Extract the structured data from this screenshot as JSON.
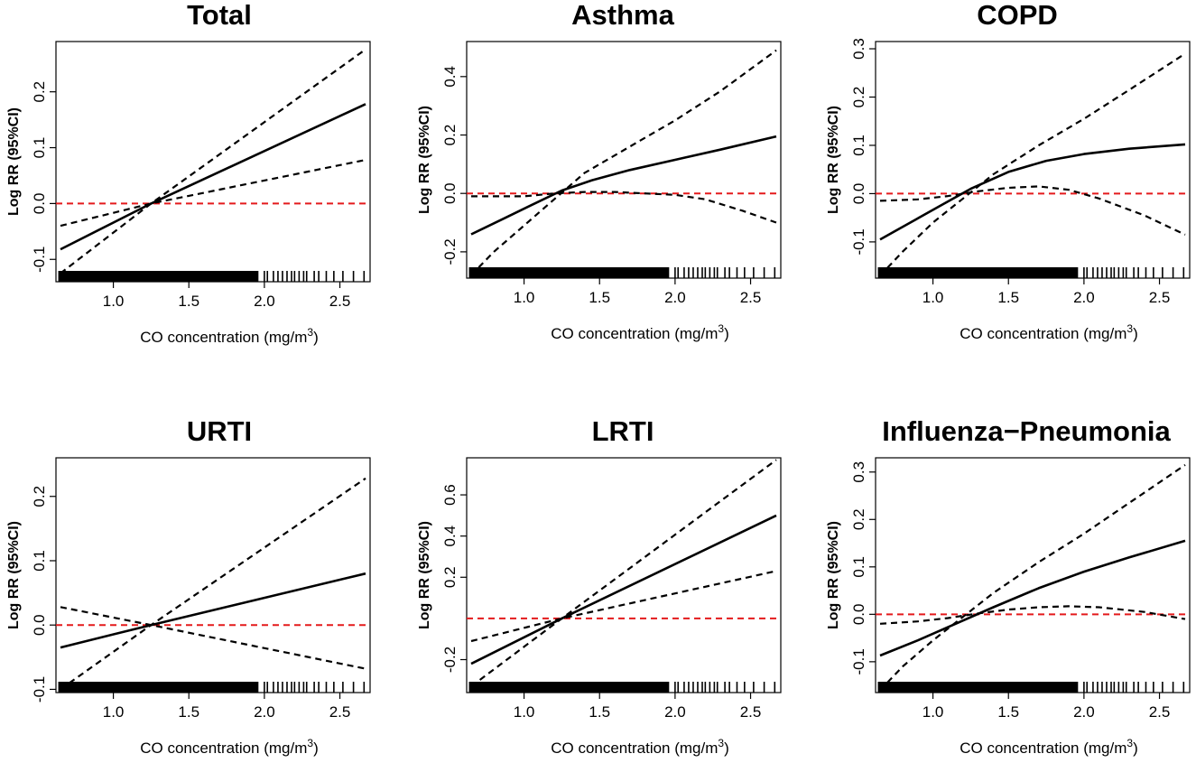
{
  "figure": {
    "caption": ""
  },
  "colors": {
    "fit": "#000000",
    "ci": "#000000",
    "reference": "#e41a1c",
    "rug": "#000000"
  },
  "chart_data": [
    {
      "type": "line",
      "title": "Total",
      "xlabel": "CO concentration (mg/m",
      "xlabel_sup": "3",
      "xlabel_close": ")",
      "ylabel": "Log RR (95%CI)",
      "xlim": [
        0.62,
        2.7
      ],
      "ylim": [
        -0.14,
        0.29
      ],
      "xticks": [
        1.0,
        1.5,
        2.0,
        2.5
      ],
      "xtick_labels": [
        "1.0",
        "1.5",
        "2.0",
        "2.5"
      ],
      "yticks": [
        -0.1,
        0.0,
        0.1,
        0.2
      ],
      "ytick_labels": [
        "-0.1",
        "0.0",
        "0.1",
        "0.2"
      ],
      "reference_line": 0,
      "series": [
        {
          "name": "estimate",
          "style": "solid",
          "x": [
            0.65,
            1.25,
            2.67
          ],
          "y": [
            -0.082,
            0.0,
            0.178
          ]
        },
        {
          "name": "upper 95% CI",
          "style": "dashed",
          "x": [
            0.65,
            1.25,
            2.67
          ],
          "y": [
            -0.04,
            0.0,
            0.078
          ]
        },
        {
          "name": "lower 95% CI",
          "style": "dashed",
          "x": [
            0.65,
            1.25,
            2.67
          ],
          "y": [
            -0.125,
            0.0,
            0.276
          ]
        }
      ]
    },
    {
      "type": "line",
      "title": "Asthma",
      "xlabel": "CO concentration (mg/m",
      "xlabel_sup": "3",
      "xlabel_close": ")",
      "ylabel": "Log RR (95%CI)",
      "xlim": [
        0.62,
        2.7
      ],
      "ylim": [
        -0.29,
        0.52
      ],
      "xticks": [
        1.0,
        1.5,
        2.0,
        2.5
      ],
      "xtick_labels": [
        "1.0",
        "1.5",
        "2.0",
        "2.5"
      ],
      "yticks": [
        -0.2,
        0.0,
        0.2,
        0.4
      ],
      "ytick_labels": [
        "-0.2",
        "0.0",
        "0.2",
        "0.4"
      ],
      "reference_line": 0,
      "series": [
        {
          "name": "estimate",
          "style": "solid",
          "x": [
            0.65,
            0.85,
            1.05,
            1.25,
            1.45,
            1.7,
            2.0,
            2.3,
            2.67
          ],
          "y": [
            -0.14,
            -0.09,
            -0.04,
            0.01,
            0.045,
            0.08,
            0.115,
            0.15,
            0.195
          ]
        },
        {
          "name": "upper 95% CI",
          "style": "dashed",
          "x": [
            0.65,
            1.0,
            1.2,
            1.4,
            1.6,
            1.8,
            2.0,
            2.2,
            2.45,
            2.67
          ],
          "y": [
            -0.01,
            -0.01,
            0.0,
            0.005,
            0.005,
            0.0,
            -0.005,
            -0.02,
            -0.06,
            -0.1
          ]
        },
        {
          "name": "lower 95% CI",
          "style": "dashed",
          "x": [
            0.65,
            0.8,
            1.0,
            1.2,
            1.4,
            1.7,
            2.0,
            2.3,
            2.67
          ],
          "y": [
            -0.28,
            -0.2,
            -0.11,
            -0.02,
            0.07,
            0.16,
            0.25,
            0.35,
            0.49
          ]
        }
      ]
    },
    {
      "type": "line",
      "title": "COPD",
      "xlabel": "CO concentration (mg/m",
      "xlabel_sup": "3",
      "xlabel_close": ")",
      "ylabel": "Log RR (95%CI)",
      "xlim": [
        0.62,
        2.7
      ],
      "ylim": [
        -0.175,
        0.315
      ],
      "xticks": [
        1.0,
        1.5,
        2.0,
        2.5
      ],
      "xtick_labels": [
        "1.0",
        "1.5",
        "2.0",
        "2.5"
      ],
      "yticks": [
        -0.1,
        0.0,
        0.1,
        0.2,
        0.3
      ],
      "ytick_labels": [
        "-0.1",
        "0.0",
        "0.1",
        "0.2",
        "0.3"
      ],
      "reference_line": 0,
      "series": [
        {
          "name": "estimate",
          "style": "solid",
          "x": [
            0.65,
            0.85,
            1.05,
            1.25,
            1.5,
            1.75,
            2.0,
            2.3,
            2.67
          ],
          "y": [
            -0.095,
            -0.06,
            -0.025,
            0.01,
            0.045,
            0.068,
            0.082,
            0.093,
            0.102
          ]
        },
        {
          "name": "upper 95% CI",
          "style": "dashed",
          "x": [
            0.65,
            0.9,
            1.1,
            1.3,
            1.5,
            1.7,
            1.9,
            2.1,
            2.4,
            2.67
          ],
          "y": [
            -0.015,
            -0.012,
            -0.005,
            0.005,
            0.012,
            0.015,
            0.008,
            -0.01,
            -0.045,
            -0.085
          ]
        },
        {
          "name": "lower 95% CI",
          "style": "dashed",
          "x": [
            0.65,
            0.8,
            1.0,
            1.2,
            1.4,
            1.7,
            2.0,
            2.3,
            2.67
          ],
          "y": [
            -0.17,
            -0.12,
            -0.06,
            -0.01,
            0.04,
            0.1,
            0.155,
            0.215,
            0.29
          ]
        }
      ]
    },
    {
      "type": "line",
      "title": "URTI",
      "xlabel": "CO concentration (mg/m",
      "xlabel_sup": "3",
      "xlabel_close": ")",
      "ylabel": "Log RR (95%CI)",
      "xlim": [
        0.62,
        2.7
      ],
      "ylim": [
        -0.105,
        0.26
      ],
      "xticks": [
        1.0,
        1.5,
        2.0,
        2.5
      ],
      "xtick_labels": [
        "1.0",
        "1.5",
        "2.0",
        "2.5"
      ],
      "yticks": [
        -0.1,
        0.0,
        0.1,
        0.2
      ],
      "ytick_labels": [
        "-0.1",
        "0.0",
        "0.1",
        "0.2"
      ],
      "reference_line": 0,
      "series": [
        {
          "name": "estimate",
          "style": "solid",
          "x": [
            0.65,
            1.25,
            2.67
          ],
          "y": [
            -0.035,
            0.0,
            0.08
          ]
        },
        {
          "name": "upper 95% CI",
          "style": "dashed",
          "x": [
            0.65,
            1.25,
            2.67
          ],
          "y": [
            0.028,
            0.0,
            -0.068
          ]
        },
        {
          "name": "lower 95% CI",
          "style": "dashed",
          "x": [
            0.65,
            1.25,
            2.67
          ],
          "y": [
            -0.1,
            0.0,
            0.228
          ]
        }
      ]
    },
    {
      "type": "line",
      "title": "LRTI",
      "xlabel": "CO concentration (mg/m",
      "xlabel_sup": "3",
      "xlabel_close": ")",
      "ylabel": "Log RR (95%CI)",
      "xlim": [
        0.62,
        2.7
      ],
      "ylim": [
        -0.36,
        0.78
      ],
      "xticks": [
        1.0,
        1.5,
        2.0,
        2.5
      ],
      "xtick_labels": [
        "1.0",
        "1.5",
        "2.0",
        "2.5"
      ],
      "yticks": [
        -0.2,
        0.2,
        0.4,
        0.6
      ],
      "ytick_labels": [
        "-0.2",
        "0.2",
        "0.4",
        "0.6"
      ],
      "reference_line": 0,
      "series": [
        {
          "name": "estimate",
          "style": "solid",
          "x": [
            0.65,
            1.25,
            2.67
          ],
          "y": [
            -0.22,
            0.0,
            0.5
          ]
        },
        {
          "name": "upper 95% CI",
          "style": "dashed",
          "x": [
            0.65,
            1.25,
            2.67
          ],
          "y": [
            -0.11,
            0.0,
            0.23
          ]
        },
        {
          "name": "lower 95% CI",
          "style": "dashed",
          "x": [
            0.65,
            1.25,
            2.67
          ],
          "y": [
            -0.33,
            0.0,
            0.77
          ]
        }
      ]
    },
    {
      "type": "line",
      "title": "Influenza−Pneumonia",
      "xlabel": "CO concentration (mg/m",
      "xlabel_sup": "3",
      "xlabel_close": ")",
      "ylabel": "Log RR (95%CI)",
      "xlim": [
        0.62,
        2.7
      ],
      "ylim": [
        -0.165,
        0.33
      ],
      "xticks": [
        1.0,
        1.5,
        2.0,
        2.5
      ],
      "xtick_labels": [
        "1.0",
        "1.5",
        "2.0",
        "2.5"
      ],
      "yticks": [
        -0.1,
        0.0,
        0.1,
        0.2,
        0.3
      ],
      "ytick_labels": [
        "-0.1",
        "0.0",
        "0.1",
        "0.2",
        "0.3"
      ],
      "reference_line": 0,
      "series": [
        {
          "name": "estimate",
          "style": "solid",
          "x": [
            0.65,
            0.9,
            1.15,
            1.4,
            1.7,
            2.0,
            2.3,
            2.67
          ],
          "y": [
            -0.087,
            -0.055,
            -0.02,
            0.015,
            0.055,
            0.09,
            0.12,
            0.155
          ]
        },
        {
          "name": "upper 95% CI",
          "style": "dashed",
          "x": [
            0.65,
            0.9,
            1.1,
            1.3,
            1.5,
            1.7,
            1.9,
            2.1,
            2.4,
            2.67
          ],
          "y": [
            -0.02,
            -0.015,
            -0.008,
            0.002,
            0.01,
            0.015,
            0.017,
            0.015,
            0.005,
            -0.01
          ]
        },
        {
          "name": "lower 95% CI",
          "style": "dashed",
          "x": [
            0.65,
            0.8,
            1.0,
            1.2,
            1.4,
            1.7,
            2.0,
            2.3,
            2.67
          ],
          "y": [
            -0.16,
            -0.11,
            -0.055,
            -0.005,
            0.045,
            0.11,
            0.17,
            0.235,
            0.315
          ]
        }
      ]
    }
  ]
}
